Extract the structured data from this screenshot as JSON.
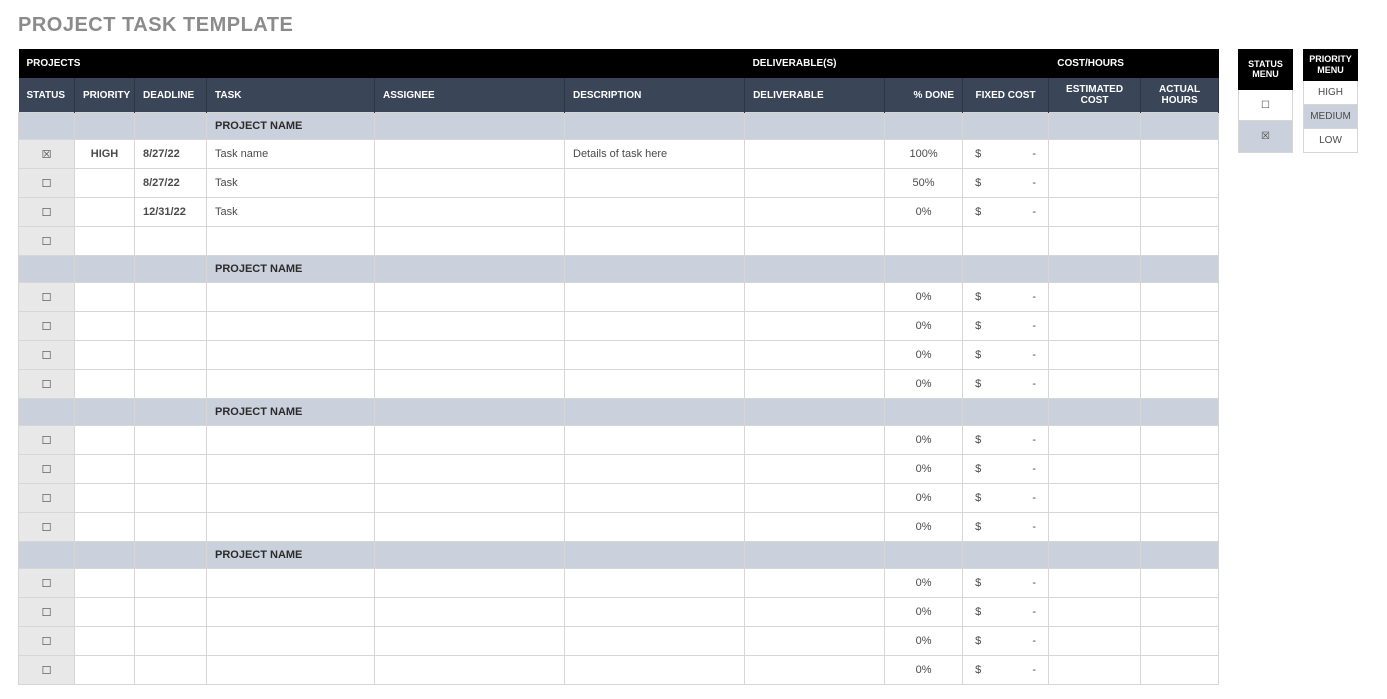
{
  "title": "PROJECT TASK TEMPLATE",
  "headers": {
    "group_projects": "PROJECTS",
    "group_deliverables": "DELIVERABLE(S)",
    "group_cost": "COST/HOURS",
    "status": "STATUS",
    "priority": "PRIORITY",
    "deadline": "DEADLINE",
    "task": "TASK",
    "assignee": "ASSIGNEE",
    "description": "DESCRIPTION",
    "deliverable": "DELIVERABLE",
    "pct_done": "% DONE",
    "fixed_cost": "FIXED COST",
    "est_cost": "ESTIMATED COST",
    "actual_hours": "ACTUAL HOURS"
  },
  "checkbox": {
    "checked": "☒",
    "unchecked": "☐"
  },
  "cost_prefix": "$",
  "cost_dash": "-",
  "projects": [
    {
      "name": "PROJECT NAME",
      "rows": [
        {
          "checked": true,
          "priority": "HIGH",
          "deadline": "8/27/22",
          "task": "Task name",
          "assignee": "",
          "desc": "Details of task here",
          "deliv": "",
          "pct": "100%",
          "has_cost": true
        },
        {
          "checked": false,
          "priority": "",
          "deadline": "8/27/22",
          "task": "Task",
          "assignee": "",
          "desc": "",
          "deliv": "",
          "pct": "50%",
          "has_cost": true
        },
        {
          "checked": false,
          "priority": "",
          "deadline": "12/31/22",
          "task": "Task",
          "assignee": "",
          "desc": "",
          "deliv": "",
          "pct": "0%",
          "has_cost": true
        },
        {
          "checked": false,
          "priority": "",
          "deadline": "",
          "task": "",
          "assignee": "",
          "desc": "",
          "deliv": "",
          "pct": "",
          "has_cost": false
        }
      ]
    },
    {
      "name": "PROJECT NAME",
      "rows": [
        {
          "checked": false,
          "priority": "",
          "deadline": "",
          "task": "",
          "assignee": "",
          "desc": "",
          "deliv": "",
          "pct": "0%",
          "has_cost": true
        },
        {
          "checked": false,
          "priority": "",
          "deadline": "",
          "task": "",
          "assignee": "",
          "desc": "",
          "deliv": "",
          "pct": "0%",
          "has_cost": true
        },
        {
          "checked": false,
          "priority": "",
          "deadline": "",
          "task": "",
          "assignee": "",
          "desc": "",
          "deliv": "",
          "pct": "0%",
          "has_cost": true
        },
        {
          "checked": false,
          "priority": "",
          "deadline": "",
          "task": "",
          "assignee": "",
          "desc": "",
          "deliv": "",
          "pct": "0%",
          "has_cost": true
        }
      ]
    },
    {
      "name": "PROJECT NAME",
      "rows": [
        {
          "checked": false,
          "priority": "",
          "deadline": "",
          "task": "",
          "assignee": "",
          "desc": "",
          "deliv": "",
          "pct": "0%",
          "has_cost": true
        },
        {
          "checked": false,
          "priority": "",
          "deadline": "",
          "task": "",
          "assignee": "",
          "desc": "",
          "deliv": "",
          "pct": "0%",
          "has_cost": true
        },
        {
          "checked": false,
          "priority": "",
          "deadline": "",
          "task": "",
          "assignee": "",
          "desc": "",
          "deliv": "",
          "pct": "0%",
          "has_cost": true
        },
        {
          "checked": false,
          "priority": "",
          "deadline": "",
          "task": "",
          "assignee": "",
          "desc": "",
          "deliv": "",
          "pct": "0%",
          "has_cost": true
        }
      ]
    },
    {
      "name": "PROJECT NAME",
      "rows": [
        {
          "checked": false,
          "priority": "",
          "deadline": "",
          "task": "",
          "assignee": "",
          "desc": "",
          "deliv": "",
          "pct": "0%",
          "has_cost": true
        },
        {
          "checked": false,
          "priority": "",
          "deadline": "",
          "task": "",
          "assignee": "",
          "desc": "",
          "deliv": "",
          "pct": "0%",
          "has_cost": true
        },
        {
          "checked": false,
          "priority": "",
          "deadline": "",
          "task": "",
          "assignee": "",
          "desc": "",
          "deliv": "",
          "pct": "0%",
          "has_cost": true
        },
        {
          "checked": false,
          "priority": "",
          "deadline": "",
          "task": "",
          "assignee": "",
          "desc": "",
          "deliv": "",
          "pct": "0%",
          "has_cost": true
        }
      ]
    }
  ],
  "status_menu": {
    "title": "STATUS MENU",
    "rows": [
      {
        "val": "☐",
        "grey": false
      },
      {
        "val": "☒",
        "grey": true
      }
    ]
  },
  "priority_menu": {
    "title": "PRIORITY MENU",
    "rows": [
      {
        "val": "HIGH",
        "grey": false
      },
      {
        "val": "MEDIUM",
        "grey": true
      },
      {
        "val": "LOW",
        "grey": false
      }
    ]
  }
}
